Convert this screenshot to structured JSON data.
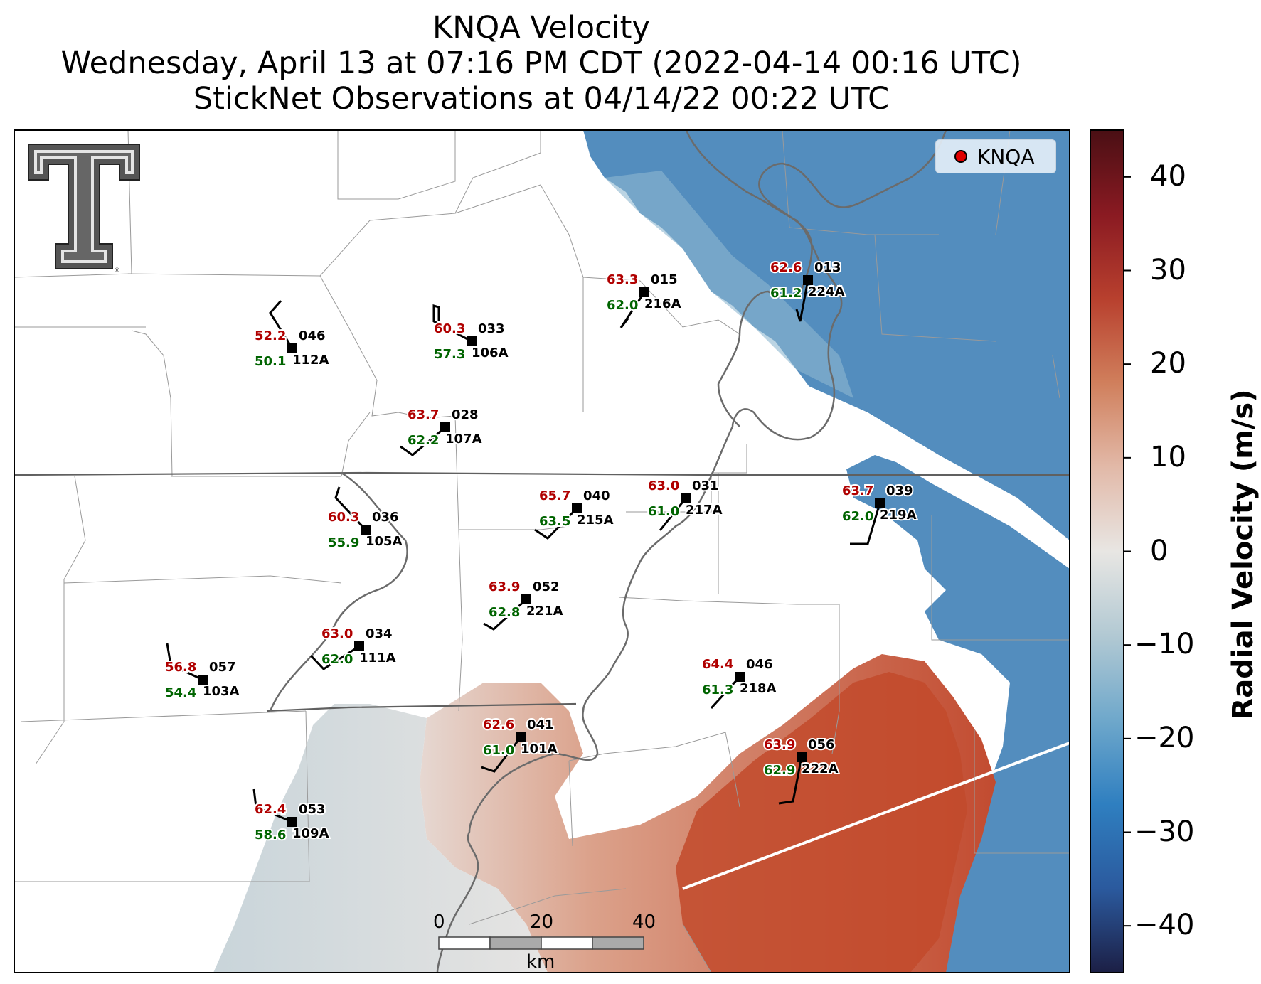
{
  "title": {
    "line1": "KNQA Velocity",
    "line2": "Wednesday, April 13 at 07:16 PM CDT (2022-04-14 00:16 UTC)",
    "line3": "StickNet Observations at 04/14/22 00:22 UTC"
  },
  "legend": {
    "label": "KNQA",
    "marker_color": "#e00000"
  },
  "colorbar": {
    "label": "Radial Velocity (m/s)",
    "ticks": [
      "40",
      "30",
      "20",
      "10",
      "0",
      "−10",
      "−20",
      "−30",
      "−40"
    ],
    "range": [
      -45,
      45
    ],
    "colors": [
      "#1c1f45",
      "#2b5a9e",
      "#2f7fc0",
      "#6fa8cb",
      "#b2c9d3",
      "#e8e6e3",
      "#e2b9a8",
      "#d07f5c",
      "#b8402e",
      "#8a1a22",
      "#4a0f14"
    ]
  },
  "scale_bar": {
    "ticks": [
      "0",
      "20",
      "40"
    ],
    "unit": "km"
  },
  "logo": {
    "name": "Texas Tech Double T"
  },
  "stations": [
    {
      "id": "112A",
      "temp": "52.2",
      "dew": "50.1",
      "pres": "046"
    },
    {
      "id": "106A",
      "temp": "60.3",
      "dew": "57.3",
      "pres": "033"
    },
    {
      "id": "216A",
      "temp": "63.3",
      "dew": "62.0",
      "pres": "015"
    },
    {
      "id": "224A",
      "temp": "62.6",
      "dew": "61.2",
      "pres": "013"
    },
    {
      "id": "107A",
      "temp": "63.7",
      "dew": "62.2",
      "pres": "028"
    },
    {
      "id": "105A",
      "temp": "60.3",
      "dew": "55.9",
      "pres": "036"
    },
    {
      "id": "215A",
      "temp": "65.7",
      "dew": "63.5",
      "pres": "040"
    },
    {
      "id": "217A",
      "temp": "63.0",
      "dew": "61.0",
      "pres": "031"
    },
    {
      "id": "219A",
      "temp": "63.7",
      "dew": "62.0",
      "pres": "039"
    },
    {
      "id": "221A",
      "temp": "63.9",
      "dew": "62.8",
      "pres": "052"
    },
    {
      "id": "111A",
      "temp": "63.0",
      "dew": "62.0",
      "pres": "034"
    },
    {
      "id": "103A",
      "temp": "56.8",
      "dew": "54.4",
      "pres": "057"
    },
    {
      "id": "218A",
      "temp": "64.4",
      "dew": "61.3",
      "pres": "046"
    },
    {
      "id": "101A",
      "temp": "62.6",
      "dew": "61.0",
      "pres": "041"
    },
    {
      "id": "222A",
      "temp": "63.9",
      "dew": "62.9",
      "pres": "056"
    },
    {
      "id": "109A",
      "temp": "62.4",
      "dew": "58.6",
      "pres": "053"
    }
  ]
}
